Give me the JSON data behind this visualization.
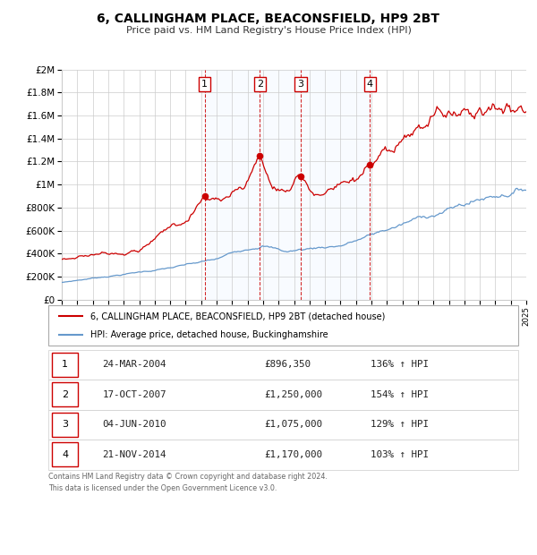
{
  "title": "6, CALLINGHAM PLACE, BEACONSFIELD, HP9 2BT",
  "subtitle": "Price paid vs. HM Land Registry's House Price Index (HPI)",
  "xlim": [
    1995,
    2025
  ],
  "ylim": [
    0,
    2000000
  ],
  "yticks": [
    0,
    200000,
    400000,
    600000,
    800000,
    1000000,
    1200000,
    1400000,
    1600000,
    1800000,
    2000000
  ],
  "ytick_labels": [
    "£0",
    "£200K",
    "£400K",
    "£600K",
    "£800K",
    "£1M",
    "£1.2M",
    "£1.4M",
    "£1.6M",
    "£1.8M",
    "£2M"
  ],
  "red_line_color": "#cc0000",
  "blue_line_color": "#6699cc",
  "shade_color": "#ddeeff",
  "grid_color": "#cccccc",
  "shade_x_start": 2004.23,
  "shade_x_end": 2014.9,
  "transactions": [
    {
      "num": 1,
      "date": "24-MAR-2004",
      "year": 2004.23,
      "price": 896350,
      "pct": "136%"
    },
    {
      "num": 2,
      "date": "17-OCT-2007",
      "year": 2007.8,
      "price": 1250000,
      "pct": "154%"
    },
    {
      "num": 3,
      "date": "04-JUN-2010",
      "year": 2010.43,
      "price": 1075000,
      "pct": "129%"
    },
    {
      "num": 4,
      "date": "21-NOV-2014",
      "year": 2014.9,
      "price": 1170000,
      "pct": "103%"
    }
  ],
  "legend_line1": "6, CALLINGHAM PLACE, BEACONSFIELD, HP9 2BT (detached house)",
  "legend_line2": "HPI: Average price, detached house, Buckinghamshire",
  "table_rows": [
    {
      "num": "1",
      "date": "24-MAR-2004",
      "price": "£896,350",
      "pct": "136% ↑ HPI"
    },
    {
      "num": "2",
      "date": "17-OCT-2007",
      "price": "£1,250,000",
      "pct": "154% ↑ HPI"
    },
    {
      "num": "3",
      "date": "04-JUN-2010",
      "price": "£1,075,000",
      "pct": "129% ↑ HPI"
    },
    {
      "num": "4",
      "date": "21-NOV-2014",
      "price": "£1,170,000",
      "pct": "103% ↑ HPI"
    }
  ],
  "footnote1": "Contains HM Land Registry data © Crown copyright and database right 2024.",
  "footnote2": "This data is licensed under the Open Government Licence v3.0."
}
